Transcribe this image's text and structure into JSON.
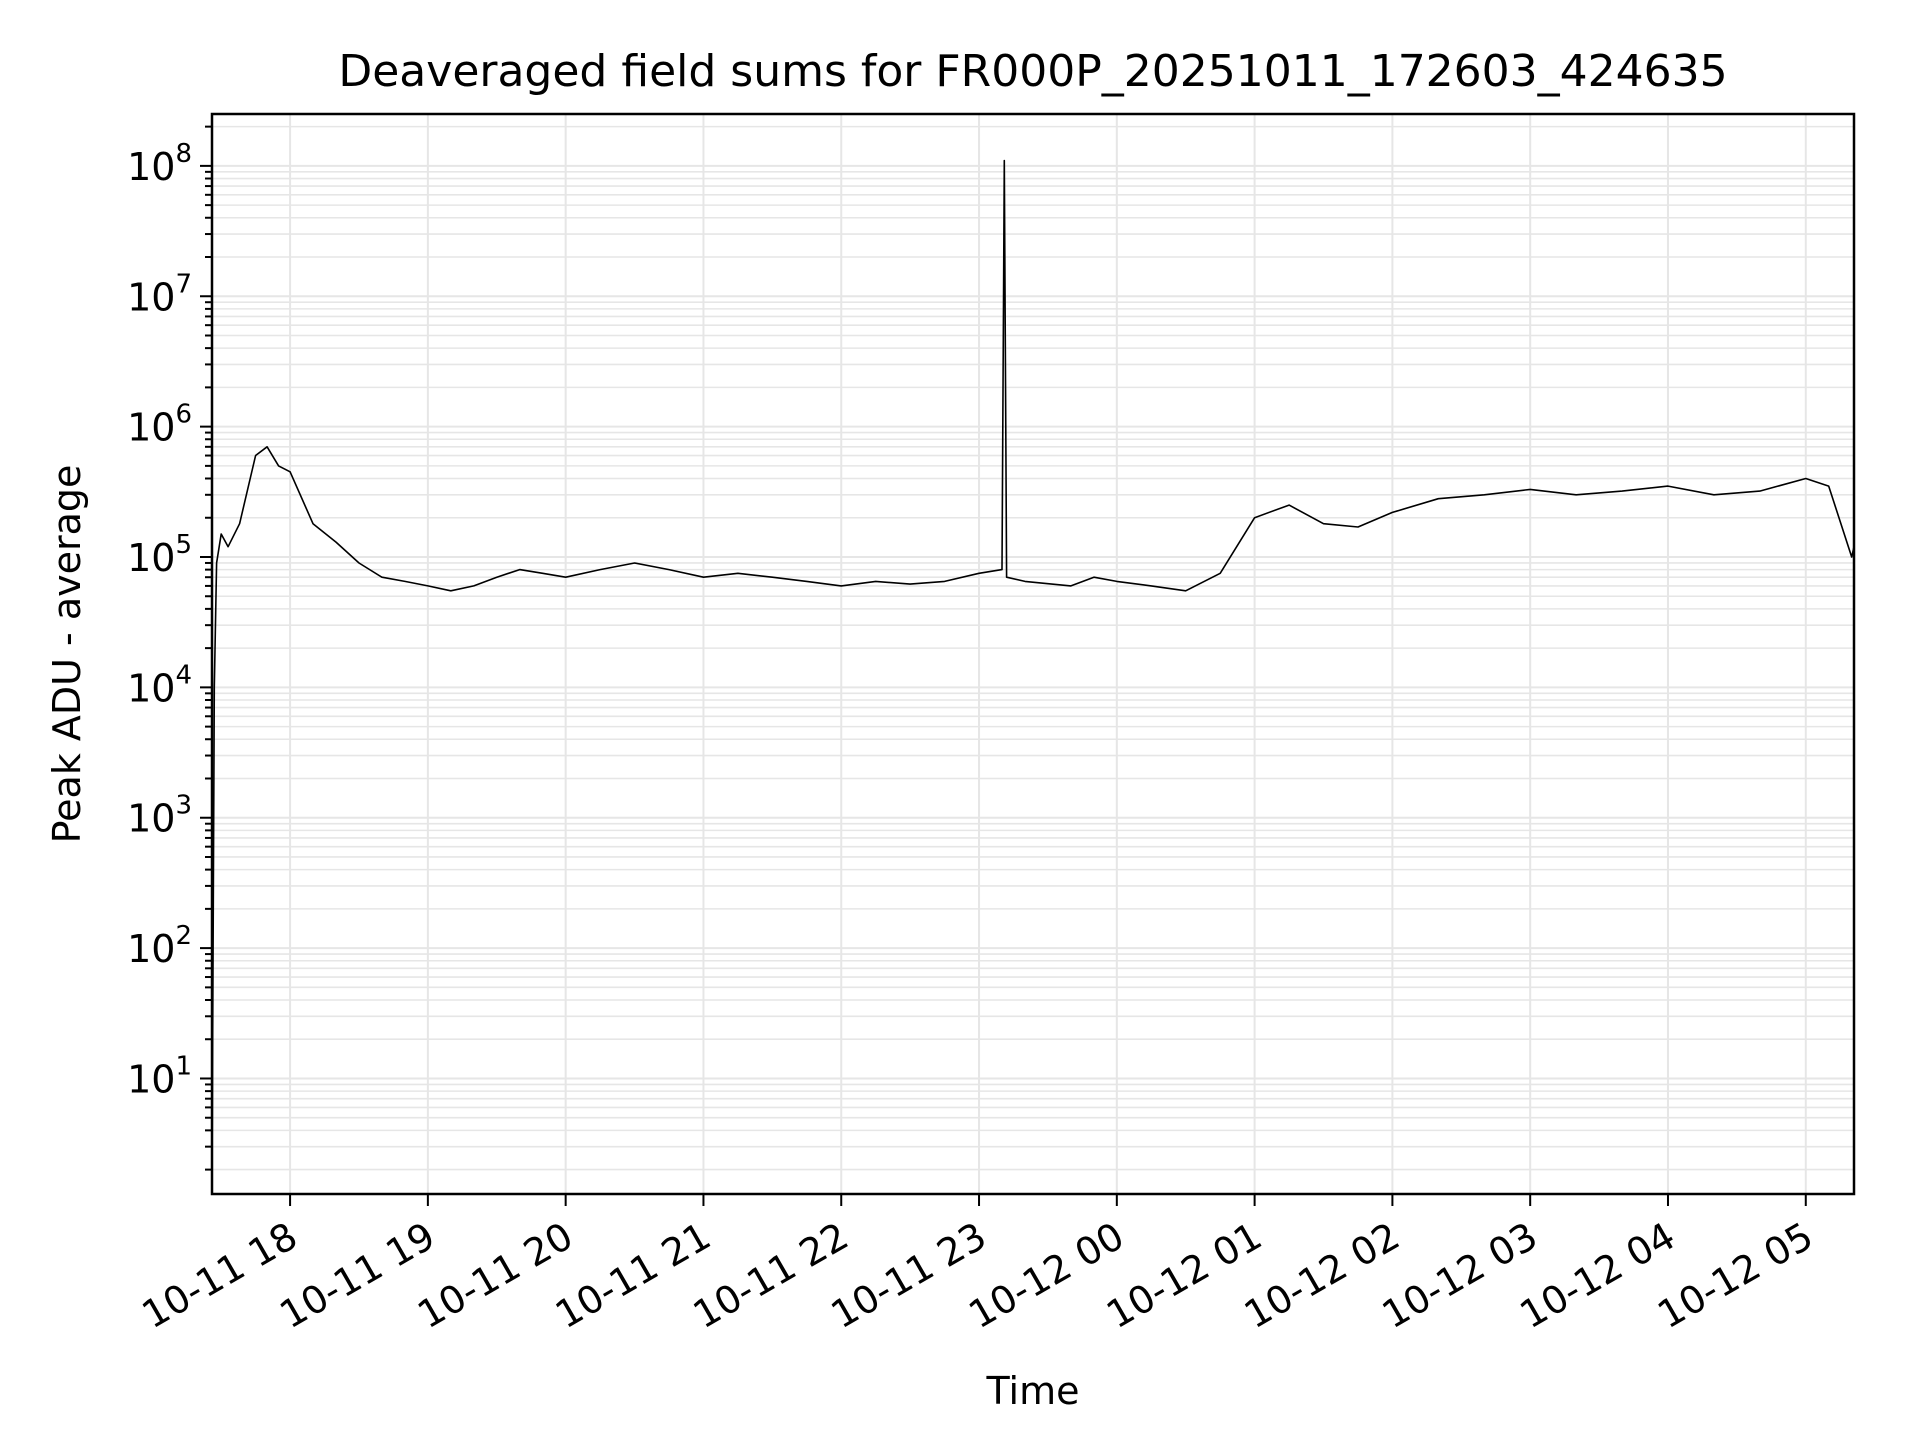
{
  "chart_data": {
    "type": "line",
    "title": "Deaveraged field sums for FR000P_20251011_172603_424635",
    "xlabel": "Time",
    "ylabel": "Peak ADU - average",
    "yscale": "log",
    "ylim": [
      1.3,
      250000000
    ],
    "xlim": [
      "2025-10-11 17:26",
      "2025-10-12 05:21"
    ],
    "grid": true,
    "x_tick_labels": [
      "10-11 18",
      "10-11 19",
      "10-11 20",
      "10-11 21",
      "10-11 22",
      "10-11 23",
      "10-12 00",
      "10-12 01",
      "10-12 02",
      "10-12 03",
      "10-12 04",
      "10-12 05"
    ],
    "y_tick_labels": [
      {
        "base": "10",
        "exp": "1"
      },
      {
        "base": "10",
        "exp": "2"
      },
      {
        "base": "10",
        "exp": "3"
      },
      {
        "base": "10",
        "exp": "4"
      },
      {
        "base": "10",
        "exp": "5"
      },
      {
        "base": "10",
        "exp": "6"
      },
      {
        "base": "10",
        "exp": "7"
      },
      {
        "base": "10",
        "exp": "8"
      }
    ],
    "line_color": "#000000",
    "grid_color": "#e6e6e6",
    "series": [
      {
        "x": [
          "2025-10-11 17:26",
          "2025-10-11 17:27",
          "2025-10-11 17:28",
          "2025-10-11 17:30",
          "2025-10-11 17:33",
          "2025-10-11 17:38",
          "2025-10-11 17:45",
          "2025-10-11 17:50",
          "2025-10-11 17:55",
          "2025-10-11 18:00",
          "2025-10-11 18:10",
          "2025-10-11 18:20",
          "2025-10-11 18:30",
          "2025-10-11 18:40",
          "2025-10-11 18:50",
          "2025-10-11 19:00",
          "2025-10-11 19:10",
          "2025-10-11 19:20",
          "2025-10-11 19:30",
          "2025-10-11 19:40",
          "2025-10-11 19:50",
          "2025-10-11 20:00",
          "2025-10-11 20:15",
          "2025-10-11 20:30",
          "2025-10-11 20:45",
          "2025-10-11 21:00",
          "2025-10-11 21:15",
          "2025-10-11 21:30",
          "2025-10-11 21:45",
          "2025-10-11 22:00",
          "2025-10-11 22:15",
          "2025-10-11 22:30",
          "2025-10-11 22:45",
          "2025-10-11 23:00",
          "2025-10-11 23:10",
          "2025-10-11 23:11",
          "2025-10-11 23:12",
          "2025-10-11 23:20",
          "2025-10-11 23:40",
          "2025-10-11 23:50",
          "2025-10-12 00:00",
          "2025-10-12 00:15",
          "2025-10-12 00:30",
          "2025-10-12 00:45",
          "2025-10-12 01:00",
          "2025-10-12 01:15",
          "2025-10-12 01:30",
          "2025-10-12 01:45",
          "2025-10-12 02:00",
          "2025-10-12 02:20",
          "2025-10-12 02:40",
          "2025-10-12 03:00",
          "2025-10-12 03:20",
          "2025-10-12 03:40",
          "2025-10-12 04:00",
          "2025-10-12 04:20",
          "2025-10-12 04:40",
          "2025-10-12 05:00",
          "2025-10-12 05:10",
          "2025-10-12 05:20",
          "2025-10-12 05:21"
        ],
        "y": [
          1.5,
          10000,
          90000,
          150000,
          120000,
          180000,
          600000,
          700000,
          500000,
          450000,
          180000,
          130000,
          90000,
          70000,
          65000,
          60000,
          55000,
          60000,
          70000,
          80000,
          75000,
          70000,
          80000,
          90000,
          80000,
          70000,
          75000,
          70000,
          65000,
          60000,
          65000,
          62000,
          65000,
          75000,
          80000,
          110000000,
          70000,
          65000,
          60000,
          70000,
          65000,
          60000,
          55000,
          75000,
          200000,
          250000,
          180000,
          170000,
          220000,
          280000,
          300000,
          330000,
          300000,
          320000,
          350000,
          300000,
          320000,
          400000,
          350000,
          100000,
          120000
        ]
      }
    ]
  }
}
